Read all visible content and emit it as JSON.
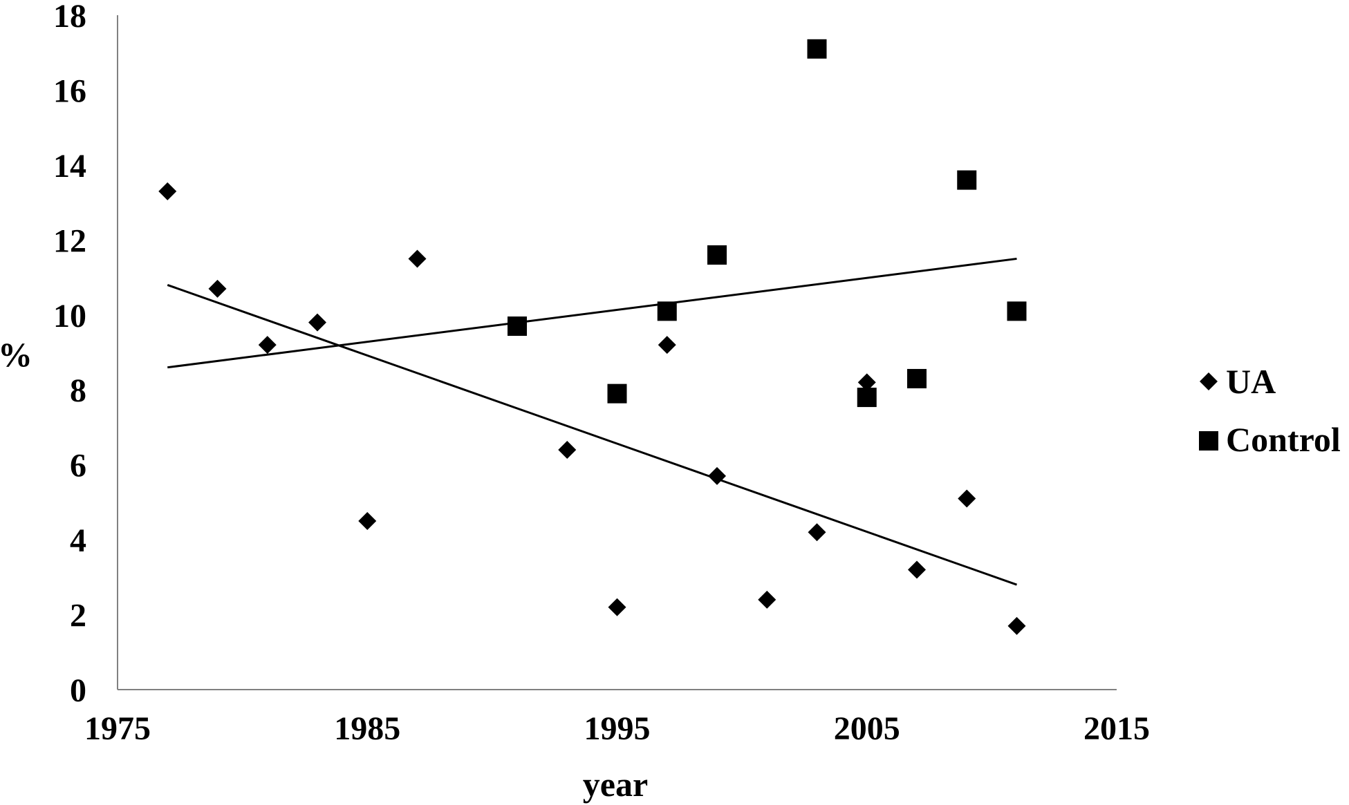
{
  "chart_data": {
    "type": "scatter",
    "xlabel": "year",
    "ylabel": "%",
    "xlim": [
      1975,
      2015
    ],
    "ylim": [
      0,
      18
    ],
    "x_ticks": [
      "1975",
      "1985",
      "1995",
      "2005",
      "2015"
    ],
    "y_ticks": [
      "0",
      "2",
      "4",
      "6",
      "8",
      "10",
      "12",
      "14",
      "16",
      "18"
    ],
    "grid": false,
    "legend_position": "right",
    "series": [
      {
        "name": "UA",
        "marker": "diamond",
        "color": "#000000",
        "points": [
          {
            "x": 1977,
            "y": 13.3
          },
          {
            "x": 1979,
            "y": 10.7
          },
          {
            "x": 1981,
            "y": 9.2
          },
          {
            "x": 1983,
            "y": 9.8
          },
          {
            "x": 1985,
            "y": 4.5
          },
          {
            "x": 1987,
            "y": 11.5
          },
          {
            "x": 1993,
            "y": 6.4
          },
          {
            "x": 1995,
            "y": 2.2
          },
          {
            "x": 1997,
            "y": 9.2
          },
          {
            "x": 1999,
            "y": 5.7
          },
          {
            "x": 2001,
            "y": 2.4
          },
          {
            "x": 2003,
            "y": 4.2
          },
          {
            "x": 2005,
            "y": 8.2
          },
          {
            "x": 2007,
            "y": 3.2
          },
          {
            "x": 2009,
            "y": 5.1
          },
          {
            "x": 2011,
            "y": 1.7
          }
        ],
        "trendline": {
          "x": [
            1977,
            2011
          ],
          "y": [
            10.8,
            2.8
          ]
        }
      },
      {
        "name": "Control",
        "marker": "square",
        "color": "#000000",
        "points": [
          {
            "x": 1991,
            "y": 9.7
          },
          {
            "x": 1995,
            "y": 7.9
          },
          {
            "x": 1997,
            "y": 10.1
          },
          {
            "x": 1999,
            "y": 11.6
          },
          {
            "x": 2003,
            "y": 17.1
          },
          {
            "x": 2005,
            "y": 7.8
          },
          {
            "x": 2007,
            "y": 8.3
          },
          {
            "x": 2009,
            "y": 13.6
          },
          {
            "x": 2011,
            "y": 10.1
          }
        ],
        "trendline": {
          "x": [
            1977,
            2011
          ],
          "y": [
            8.6,
            11.5
          ]
        }
      }
    ]
  }
}
